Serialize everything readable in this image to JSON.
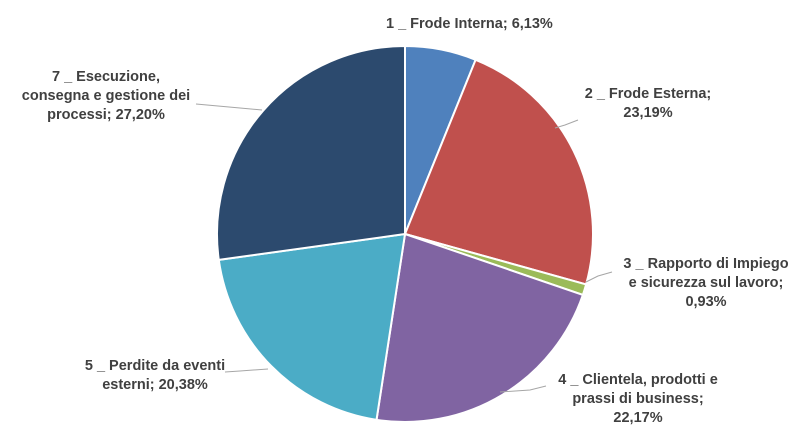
{
  "chart_data": {
    "type": "pie",
    "title": "",
    "legend": "none",
    "start_angle_deg": 0,
    "direction": "clockwise",
    "series": [
      {
        "values": [
          6.13,
          23.19,
          0.93,
          22.17,
          20.38,
          27.2
        ],
        "categories": [
          "1 _ Frode Interna",
          "2 _ Frode Esterna",
          "3 _ Rapporto di Impiego e sicurezza sul lavoro",
          "4 _ Clientela, prodotti e prassi di business",
          "5 _ Perdite da eventi esterni",
          "7 _ Esecuzione, consegna e gestione dei processi"
        ],
        "colors": [
          "#4f81bd",
          "#c0504d",
          "#9bbb59",
          "#8064a2",
          "#4bacc6",
          "#2c4a6e"
        ],
        "labels": [
          [
            "1 _ Frode Interna; 6,13%"
          ],
          [
            "2 _ Frode Esterna;",
            "23,19%"
          ],
          [
            "3 _ Rapporto di Impiego",
            "e sicurezza sul lavoro;",
            "0,93%"
          ],
          [
            "4 _ Clientela, prodotti e",
            "prassi di business;",
            "22,17%"
          ],
          [
            "5 _ Perdite da eventi",
            "esterni; 20,38%"
          ],
          [
            "7 _ Esecuzione,",
            "consegna e gestione dei",
            "processi; 27,20%"
          ]
        ]
      }
    ]
  }
}
